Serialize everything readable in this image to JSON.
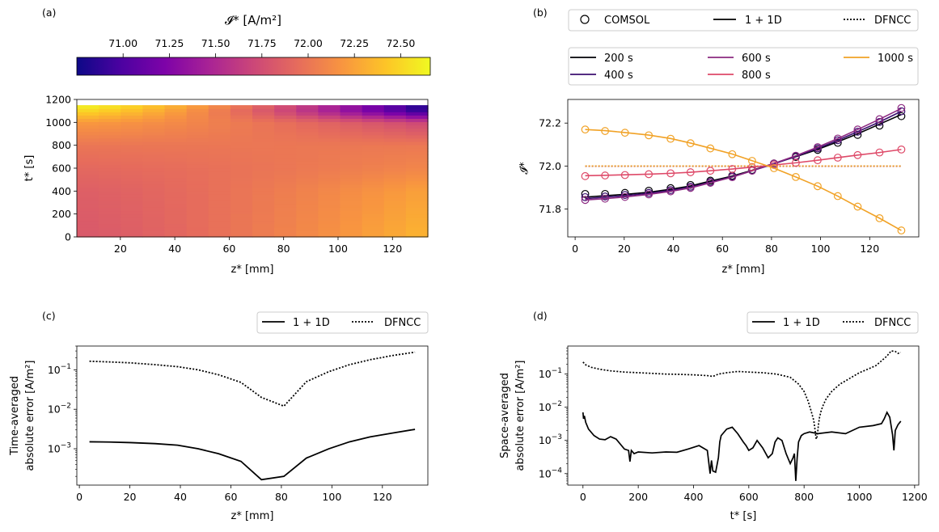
{
  "panel_labels": {
    "a": "(a)",
    "b": "(b)",
    "c": "(c)",
    "d": "(d)"
  },
  "colors": {
    "s200": "#000004",
    "s400": "#3b0f70",
    "s600": "#8c2981",
    "s800": "#de4968",
    "s1000": "#f1a226",
    "black": "#000000"
  },
  "chart_data": [
    {
      "id": "a",
      "type": "heatmap",
      "title": "",
      "colorbar_label": "𝓘* [A/m²]",
      "colorbar_ticks": [
        "71.00",
        "71.25",
        "71.50",
        "71.75",
        "72.00",
        "72.25",
        "72.50"
      ],
      "colorbar_range": [
        70.75,
        72.66
      ],
      "colormap": "plasma",
      "xlabel": "z* [mm]",
      "ylabel": "t* [s]",
      "xlim": [
        4,
        133
      ],
      "ylim": [
        0,
        1200
      ],
      "xticks": [
        "20",
        "40",
        "60",
        "80",
        "100",
        "120"
      ],
      "yticks": [
        "0",
        "200",
        "400",
        "600",
        "800",
        "1000",
        "1200"
      ],
      "data_tmax": 1150,
      "gradient_end_values": [
        {
          "t": 0,
          "low_z": 71.82,
          "high_z": 72.35
        },
        {
          "t": 400,
          "low_z": 71.86,
          "high_z": 72.25
        },
        {
          "t": 600,
          "low_z": 71.92,
          "high_z": 72.1
        },
        {
          "t": 800,
          "low_z": 72.0,
          "high_z": 72.02
        },
        {
          "t": 1000,
          "low_z": 72.2,
          "high_z": 71.7
        },
        {
          "t": 1100,
          "low_z": 72.5,
          "high_z": 70.85
        },
        {
          "t": 1150,
          "low_z": 72.64,
          "high_z": 70.8
        }
      ]
    },
    {
      "id": "b",
      "type": "line",
      "xlabel": "z* [mm]",
      "ylabel": "𝓘*",
      "xlim": [
        -3,
        140
      ],
      "ylim": [
        71.67,
        72.31
      ],
      "xticks": [
        0,
        20,
        40,
        60,
        80,
        100,
        120
      ],
      "yticks": [
        "71.8",
        "72.0",
        "72.2"
      ],
      "method_legend": [
        "COMSOL",
        "1 + 1D",
        "DFNCC"
      ],
      "x": [
        4.1,
        12.2,
        20.3,
        30.0,
        38.9,
        47.0,
        55.1,
        64.0,
        72.1,
        81.0,
        89.9,
        98.8,
        107.0,
        115.1,
        124.0,
        132.9
      ],
      "series": [
        {
          "name": "200 s",
          "color": "#000004",
          "values": [
            71.855,
            71.862,
            71.868,
            71.878,
            71.892,
            71.907,
            71.93,
            71.953,
            71.98,
            72.012,
            72.043,
            72.077,
            72.113,
            72.15,
            72.195,
            72.24
          ],
          "comsol": [
            71.87,
            71.87,
            71.875,
            71.885,
            71.897,
            71.912,
            71.932,
            71.955,
            71.982,
            72.012,
            72.042,
            72.075,
            72.108,
            72.145,
            72.188,
            72.232
          ],
          "dfncc": 72.0
        },
        {
          "name": "400 s",
          "color": "#3b0f70",
          "values": [
            71.848,
            71.855,
            71.862,
            71.873,
            71.887,
            71.902,
            71.925,
            71.95,
            71.978,
            72.01,
            72.045,
            72.082,
            72.12,
            72.16,
            72.205,
            72.255
          ],
          "comsol": [
            71.855,
            71.858,
            71.865,
            71.875,
            71.888,
            71.904,
            71.926,
            71.952,
            71.98,
            72.011,
            72.045,
            72.082,
            72.12,
            72.16,
            72.205,
            72.255
          ],
          "dfncc": 72.0
        },
        {
          "name": "600 s",
          "color": "#8c2981",
          "values": [
            71.842,
            71.848,
            71.856,
            71.868,
            71.882,
            71.898,
            71.922,
            71.948,
            71.978,
            72.012,
            72.048,
            72.088,
            72.128,
            72.17,
            72.218,
            72.268
          ],
          "comsol": [
            71.842,
            71.848,
            71.856,
            71.868,
            71.882,
            71.898,
            71.922,
            71.948,
            71.978,
            72.012,
            72.048,
            72.088,
            72.128,
            72.17,
            72.218,
            72.27
          ],
          "dfncc": 72.0
        },
        {
          "name": "800 s",
          "color": "#de4968",
          "values": [
            71.955,
            71.957,
            71.959,
            71.962,
            71.966,
            71.971,
            71.978,
            71.986,
            71.995,
            72.005,
            72.015,
            72.027,
            72.039,
            72.051,
            72.063,
            72.077
          ],
          "comsol": [
            71.953,
            71.956,
            71.958,
            71.962,
            71.966,
            71.971,
            71.978,
            71.986,
            71.995,
            72.005,
            72.015,
            72.027,
            72.039,
            72.051,
            72.063,
            72.077
          ],
          "dfncc": 72.0
        },
        {
          "name": "1000 s",
          "color": "#f1a226",
          "values": [
            72.17,
            72.165,
            72.156,
            72.144,
            72.128,
            72.107,
            72.083,
            72.056,
            72.025,
            71.99,
            71.949,
            71.906,
            71.86,
            71.81,
            71.757,
            71.7
          ],
          "comsol": [
            72.17,
            72.163,
            72.155,
            72.143,
            72.127,
            72.106,
            72.082,
            72.055,
            72.024,
            71.99,
            71.949,
            71.906,
            71.86,
            71.811,
            71.757,
            71.7
          ],
          "dfncc": 72.0
        }
      ]
    },
    {
      "id": "c",
      "type": "line",
      "yscale": "log",
      "xlabel": "z* [mm]",
      "ylabel_line1": "Time-averaged",
      "ylabel_line2": "absolute error [A/m²]",
      "xlim": [
        -1,
        138
      ],
      "ylim": [
        0.00012,
        0.4
      ],
      "xticks": [
        0,
        20,
        40,
        60,
        80,
        100,
        120
      ],
      "legend": [
        "1 + 1D",
        "DFNCC"
      ],
      "x": [
        4,
        12.2,
        20.3,
        30,
        38.9,
        47,
        55.1,
        64,
        72.1,
        81,
        89.9,
        98.8,
        107,
        115.1,
        124,
        132.9
      ],
      "series": [
        {
          "name": "1 + 1D",
          "style": "solid",
          "values": [
            0.0015,
            0.00148,
            0.00143,
            0.00135,
            0.00123,
            0.001,
            0.00075,
            0.00048,
            0.000165,
            0.0002,
            0.00058,
            0.001,
            0.0015,
            0.002,
            0.0025,
            0.0031
          ]
        },
        {
          "name": "DFNCC",
          "style": "dotted",
          "values": [
            0.165,
            0.158,
            0.15,
            0.135,
            0.12,
            0.1,
            0.075,
            0.048,
            0.02,
            0.012,
            0.05,
            0.09,
            0.135,
            0.18,
            0.23,
            0.28
          ]
        }
      ]
    },
    {
      "id": "d",
      "type": "line",
      "yscale": "log",
      "xlabel": "t* [s]",
      "ylabel_line1": "Space-averaged",
      "ylabel_line2": "absolute error [A/m²]",
      "xlim": [
        -55,
        1215
      ],
      "ylim": [
        4.5e-05,
        0.7
      ],
      "xticks": [
        0,
        200,
        400,
        600,
        800,
        1000,
        1200
      ],
      "legend": [
        "1 + 1D",
        "DFNCC"
      ],
      "series": [
        {
          "name": "1 + 1D",
          "style": "solid",
          "t": [
            0,
            2,
            5,
            10,
            20,
            40,
            60,
            80,
            100,
            120,
            150,
            165,
            170,
            175,
            185,
            200,
            250,
            300,
            340,
            380,
            420,
            450,
            460,
            465,
            470,
            480,
            490,
            495,
            500,
            520,
            540,
            560,
            570,
            580,
            590,
            600,
            615,
            630,
            650,
            670,
            685,
            695,
            705,
            720,
            735,
            750,
            760,
            765,
            770,
            775,
            780,
            790,
            800,
            820,
            850,
            900,
            950,
            1000,
            1050,
            1080,
            1090,
            1100,
            1110,
            1120,
            1125,
            1130,
            1140,
            1150
          ],
          "v": [
            0.007,
            0.0045,
            0.0055,
            0.0035,
            0.0022,
            0.0014,
            0.0011,
            0.00105,
            0.0013,
            0.0011,
            0.00055,
            0.0005,
            0.00023,
            0.0005,
            0.0004,
            0.00045,
            0.00042,
            0.00045,
            0.00044,
            0.00055,
            0.0007,
            0.0005,
            0.0001,
            0.00025,
            0.00012,
            0.00011,
            0.0003,
            0.0009,
            0.0014,
            0.0022,
            0.0025,
            0.0016,
            0.0012,
            0.0009,
            0.0007,
            0.0005,
            0.0006,
            0.001,
            0.0006,
            0.0003,
            0.0004,
            0.0009,
            0.0012,
            0.001,
            0.0004,
            0.0002,
            0.0003,
            0.0004,
            6e-05,
            0.0003,
            0.0009,
            0.0014,
            0.0016,
            0.0018,
            0.0016,
            0.0018,
            0.0016,
            0.0025,
            0.0028,
            0.0032,
            0.0045,
            0.007,
            0.005,
            0.0015,
            0.0005,
            0.002,
            0.003,
            0.0038
          ]
        },
        {
          "name": "DFNCC",
          "style": "dotted",
          "t": [
            0,
            10,
            30,
            60,
            100,
            150,
            200,
            250,
            300,
            350,
            400,
            450,
            470,
            490,
            520,
            560,
            600,
            650,
            700,
            750,
            780,
            800,
            815,
            825,
            835,
            840,
            843,
            845,
            848,
            852,
            856,
            862,
            870,
            880,
            900,
            930,
            960,
            1000,
            1030,
            1060,
            1080,
            1100,
            1115,
            1130,
            1140,
            1150
          ],
          "v": [
            0.23,
            0.19,
            0.16,
            0.14,
            0.125,
            0.115,
            0.11,
            0.105,
            0.1,
            0.098,
            0.095,
            0.09,
            0.085,
            0.1,
            0.11,
            0.12,
            0.115,
            0.11,
            0.1,
            0.08,
            0.05,
            0.03,
            0.015,
            0.008,
            0.004,
            0.002,
            0.0012,
            0.0011,
            0.0014,
            0.003,
            0.005,
            0.008,
            0.012,
            0.018,
            0.03,
            0.05,
            0.07,
            0.11,
            0.14,
            0.18,
            0.25,
            0.35,
            0.5,
            0.48,
            0.42,
            0.45
          ]
        }
      ]
    }
  ]
}
